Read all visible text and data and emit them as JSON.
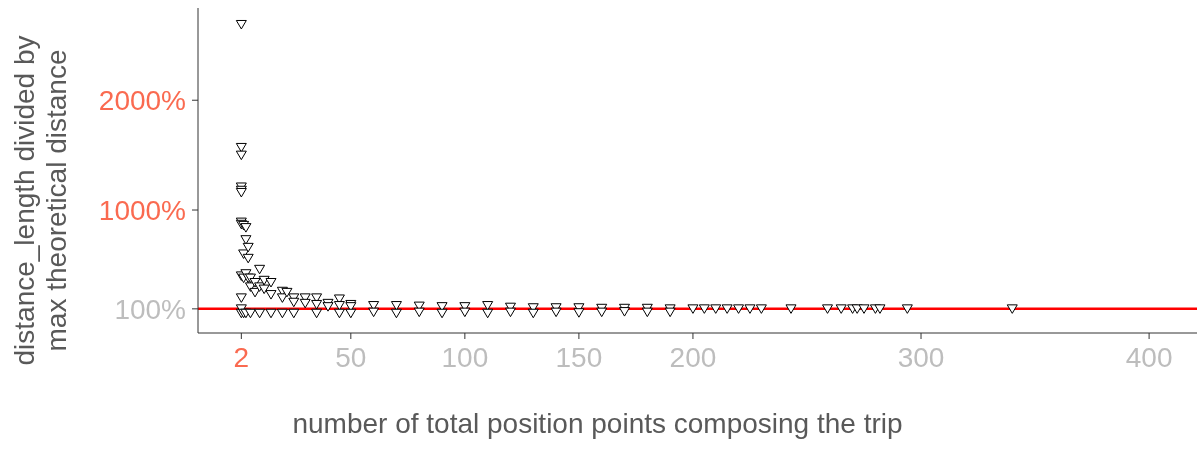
{
  "chart_data": {
    "type": "scatter",
    "xlabel": "number of total position points composing the trip",
    "ylabel": "distance_length divided by\nmax theoretical distance",
    "x": [
      2,
      2,
      2,
      2,
      2,
      2,
      2,
      2,
      2,
      2,
      2,
      2,
      3,
      3,
      3,
      3,
      4,
      4,
      4,
      4,
      5,
      5,
      5,
      6,
      6,
      6,
      8,
      8,
      10,
      10,
      10,
      12,
      12,
      15,
      15,
      15,
      20,
      20,
      20,
      22,
      25,
      25,
      25,
      30,
      30,
      35,
      35,
      35,
      40,
      40,
      45,
      45,
      45,
      50,
      50,
      50,
      60,
      60,
      70,
      70,
      80,
      80,
      90,
      90,
      100,
      100,
      110,
      110,
      120,
      120,
      130,
      130,
      140,
      140,
      150,
      150,
      160,
      160,
      170,
      170,
      180,
      180,
      190,
      190,
      200,
      205,
      210,
      215,
      220,
      225,
      230,
      243,
      259,
      265,
      270,
      272,
      275,
      280,
      282,
      294,
      340
    ],
    "series": [
      {
        "color": "#000000",
        "values": [
          2690,
          1570,
          1500,
          1210,
          1180,
          1160,
          890,
          870,
          60,
          100,
          200,
          400,
          860,
          600,
          380,
          60,
          840,
          730,
          420,
          60,
          660,
          560,
          380,
          380,
          300,
          60,
          340,
          250,
          460,
          300,
          60,
          360,
          280,
          340,
          230,
          60,
          260,
          200,
          60,
          250,
          200,
          160,
          60,
          200,
          150,
          200,
          140,
          60,
          150,
          120,
          190,
          130,
          60,
          140,
          120,
          60,
          130,
          70,
          130,
          60,
          125,
          70,
          120,
          60,
          120,
          70,
          130,
          60,
          115,
          70,
          110,
          60,
          110,
          70,
          110,
          65,
          105,
          70,
          105,
          75,
          105,
          70,
          100,
          70,
          100,
          100,
          100,
          100,
          100,
          100,
          100,
          100,
          100,
          100,
          100,
          100,
          100,
          100,
          100,
          100,
          100
        ]
      }
    ],
    "marker": "triangle",
    "xlim": [
      -17,
      421
    ],
    "xticks": [
      2,
      50,
      100,
      150,
      200,
      300,
      400
    ],
    "ylim": [
      -120,
      2840
    ],
    "yticks": [
      {
        "value": 100,
        "label": "100%"
      },
      {
        "value": 1000,
        "label": "1000%"
      },
      {
        "value": 2000,
        "label": "2000%"
      }
    ],
    "ref_lines": [
      {
        "axis": "y",
        "value": 100,
        "color": "#ff0000",
        "line_style": "solid"
      }
    ],
    "grid": false,
    "legend": false
  }
}
